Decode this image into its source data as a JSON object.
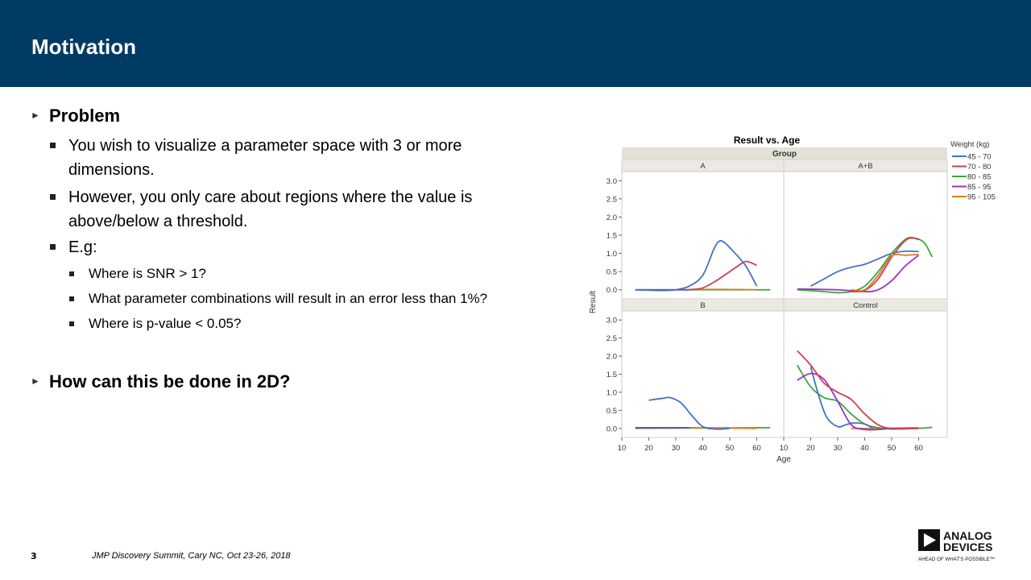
{
  "title": "Motivation",
  "bullets": {
    "problem": "Problem",
    "items": [
      "You wish to visualize a parameter space with 3 or more dimensions.",
      "However, you only care about regions where the value is above/below a threshold.",
      "E.g:"
    ],
    "examples": [
      "Where is SNR > 1?",
      "What parameter combinations will result in an error less than 1%?",
      "Where is p-value < 0.05?"
    ],
    "question": "How can this be done in 2D?"
  },
  "footer": {
    "page": "3",
    "text": "JMP Discovery Summit, Cary NC, Oct 23-26, 2018"
  },
  "logo": {
    "line1": "ANALOG",
    "line2": "DEVICES",
    "tagline": "AHEAD OF WHAT'S POSSIBLE™"
  },
  "chart_data": {
    "type": "line",
    "title": "Result vs. Age",
    "group_label": "Group",
    "xlabel": "Age",
    "ylabel": "Result",
    "xlim": [
      10,
      70
    ],
    "ylim": [
      -0.25,
      3.25
    ],
    "xticks": [
      10,
      20,
      30,
      40,
      50,
      60
    ],
    "yticks": [
      "0.0",
      "0.5",
      "1.0",
      "1.5",
      "2.0",
      "2.5",
      "3.0"
    ],
    "legend": {
      "title": "Weight (kg)",
      "position": "right"
    },
    "series_colors": {
      "45 - 70": "#4472c4",
      "70 - 80": "#d0404f",
      "80 - 85": "#3aa83a",
      "85 - 95": "#9932cc",
      "95 - 105": "#e07b24"
    },
    "panels": [
      {
        "name": "A",
        "series": [
          {
            "name": "80 - 85",
            "points": [
              [
                15,
                0
              ],
              [
                40,
                0
              ],
              [
                65,
                0
              ]
            ]
          },
          {
            "name": "85 - 95",
            "points": [
              [
                15,
                0
              ],
              [
                35,
                0
              ]
            ]
          },
          {
            "name": "95 - 105",
            "points": [
              [
                35,
                0.01
              ],
              [
                48,
                0.01
              ],
              [
                60,
                0
              ]
            ]
          },
          {
            "name": "70 - 80",
            "points": [
              [
                35,
                0
              ],
              [
                40,
                0.05
              ],
              [
                45,
                0.25
              ],
              [
                50,
                0.5
              ],
              [
                55,
                0.75
              ],
              [
                57,
                0.77
              ],
              [
                60,
                0.67
              ]
            ]
          },
          {
            "name": "45 - 70",
            "points": [
              [
                15,
                0
              ],
              [
                25,
                -0.02
              ],
              [
                30,
                0
              ],
              [
                35,
                0.1
              ],
              [
                40,
                0.4
              ],
              [
                44,
                1.1
              ],
              [
                46,
                1.33
              ],
              [
                48,
                1.3
              ],
              [
                52,
                1.0
              ],
              [
                56,
                0.65
              ],
              [
                60,
                0.1
              ]
            ]
          }
        ]
      },
      {
        "name": "A+B",
        "series": [
          {
            "name": "45 - 70",
            "points": [
              [
                20,
                0.1
              ],
              [
                25,
                0.3
              ],
              [
                30,
                0.5
              ],
              [
                35,
                0.62
              ],
              [
                40,
                0.7
              ],
              [
                45,
                0.85
              ],
              [
                50,
                1.0
              ],
              [
                55,
                1.06
              ],
              [
                60,
                1.05
              ]
            ]
          },
          {
            "name": "80 - 85",
            "points": [
              [
                15,
                0
              ],
              [
                25,
                -0.05
              ],
              [
                30,
                -0.08
              ],
              [
                35,
                -0.05
              ],
              [
                40,
                0.1
              ],
              [
                45,
                0.5
              ],
              [
                50,
                1.0
              ],
              [
                55,
                1.38
              ],
              [
                58,
                1.43
              ],
              [
                62,
                1.3
              ],
              [
                65,
                0.9
              ]
            ]
          },
          {
            "name": "70 - 80",
            "points": [
              [
                35,
                -0.05
              ],
              [
                40,
                -0.02
              ],
              [
                45,
                0.3
              ],
              [
                50,
                0.9
              ],
              [
                55,
                1.35
              ],
              [
                58,
                1.42
              ],
              [
                60,
                1.38
              ]
            ]
          },
          {
            "name": "85 - 95",
            "points": [
              [
                15,
                0.02
              ],
              [
                30,
                0
              ],
              [
                40,
                -0.05
              ],
              [
                45,
                0
              ],
              [
                50,
                0.25
              ],
              [
                55,
                0.65
              ],
              [
                60,
                0.95
              ]
            ]
          },
          {
            "name": "95 - 105",
            "points": [
              [
                35,
                0
              ],
              [
                40,
                0
              ],
              [
                45,
                0.4
              ],
              [
                50,
                0.93
              ],
              [
                55,
                0.95
              ],
              [
                60,
                0.97
              ]
            ]
          }
        ]
      },
      {
        "name": "B",
        "series": [
          {
            "name": "80 - 85",
            "points": [
              [
                15,
                0
              ],
              [
                40,
                0.01
              ],
              [
                65,
                0.02
              ]
            ]
          },
          {
            "name": "85 - 95",
            "points": [
              [
                15,
                0.02
              ],
              [
                35,
                0.02
              ]
            ]
          },
          {
            "name": "95 - 105",
            "points": [
              [
                35,
                0.02
              ],
              [
                48,
                0.01
              ],
              [
                60,
                0
              ]
            ]
          },
          {
            "name": "45 - 70",
            "points": [
              [
                20,
                0.78
              ],
              [
                25,
                0.83
              ],
              [
                28,
                0.85
              ],
              [
                32,
                0.7
              ],
              [
                36,
                0.35
              ],
              [
                40,
                0.05
              ],
              [
                45,
                -0.02
              ],
              [
                50,
                0
              ]
            ]
          }
        ]
      },
      {
        "name": "Control",
        "series": [
          {
            "name": "95 - 105",
            "points": [
              [
                35,
                0
              ],
              [
                48,
                0
              ],
              [
                60,
                0.02
              ]
            ]
          },
          {
            "name": "80 - 85",
            "points": [
              [
                15,
                1.75
              ],
              [
                20,
                1.15
              ],
              [
                25,
                0.85
              ],
              [
                30,
                0.75
              ],
              [
                35,
                0.4
              ],
              [
                40,
                0.12
              ],
              [
                45,
                0.02
              ],
              [
                50,
                -0.02
              ],
              [
                60,
                0
              ],
              [
                65,
                0.03
              ]
            ]
          },
          {
            "name": "45 - 70",
            "points": [
              [
                20,
                1.7
              ],
              [
                23,
                0.9
              ],
              [
                26,
                0.3
              ],
              [
                30,
                0.05
              ],
              [
                33,
                0.1
              ],
              [
                36,
                0.15
              ],
              [
                40,
                0.12
              ],
              [
                43,
                0
              ]
            ]
          },
          {
            "name": "85 - 95",
            "points": [
              [
                15,
                1.33
              ],
              [
                20,
                1.52
              ],
              [
                25,
                1.35
              ],
              [
                30,
                0.75
              ],
              [
                35,
                0.1
              ],
              [
                40,
                -0.03
              ],
              [
                45,
                -0.03
              ],
              [
                50,
                0
              ],
              [
                55,
                0
              ],
              [
                60,
                0
              ]
            ]
          },
          {
            "name": "70 - 80",
            "points": [
              [
                15,
                2.15
              ],
              [
                20,
                1.75
              ],
              [
                25,
                1.25
              ],
              [
                30,
                1.0
              ],
              [
                35,
                0.8
              ],
              [
                40,
                0.4
              ],
              [
                45,
                0.1
              ],
              [
                50,
                0
              ],
              [
                60,
                0
              ]
            ]
          }
        ]
      }
    ]
  }
}
